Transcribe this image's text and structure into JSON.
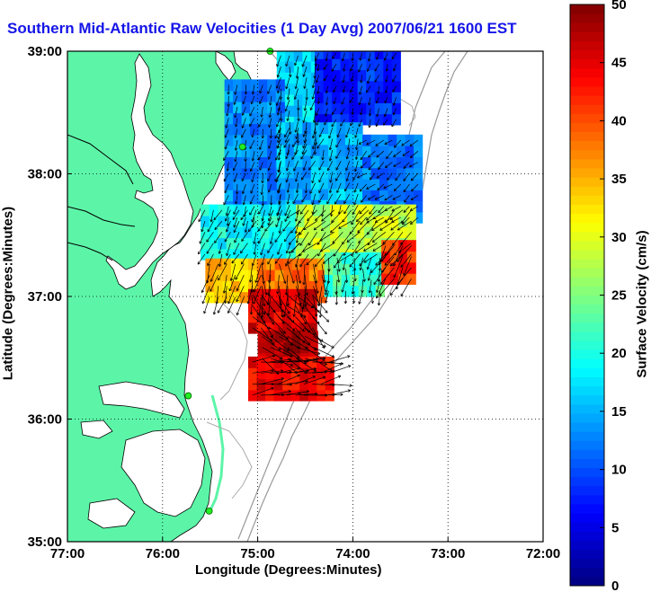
{
  "chart_data": {
    "type": "map-heatmap",
    "title": "Southern Mid-Atlantic Raw Velocities (1 Day Avg) 2007/06/21 1600 EST",
    "xlabel": "Longitude (Degrees:Minutes)",
    "ylabel": "Latitude (Degrees:Minutes)",
    "colorbar_label": "Surface Velocity (cm/s)",
    "x_range": [
      -77,
      -72
    ],
    "y_range": [
      35,
      39
    ],
    "x_ticks": [
      {
        "value": -77,
        "label": "77:00"
      },
      {
        "value": -76,
        "label": "76:00"
      },
      {
        "value": -75,
        "label": "75:00"
      },
      {
        "value": -74,
        "label": "74:00"
      },
      {
        "value": -73,
        "label": "73:00"
      },
      {
        "value": -72,
        "label": "72:00"
      }
    ],
    "y_ticks": [
      {
        "value": 35,
        "label": "35:00"
      },
      {
        "value": 36,
        "label": "36:00"
      },
      {
        "value": 37,
        "label": "37:00"
      },
      {
        "value": 38,
        "label": "38:00"
      },
      {
        "value": 39,
        "label": "39:00"
      }
    ],
    "colorbar_range": [
      0,
      50
    ],
    "colorbar_ticks": [
      0,
      5,
      10,
      15,
      20,
      25,
      30,
      35,
      40,
      45,
      50
    ],
    "grid": "dotted",
    "colormap": "jet",
    "stations": [
      {
        "lon": -74.87,
        "lat": 39.0
      },
      {
        "lon": -75.16,
        "lat": 38.22
      },
      {
        "lon": -75.73,
        "lat": 36.19
      },
      {
        "lon": -75.51,
        "lat": 35.25
      }
    ],
    "velocity_field": {
      "note": "gridded surface current speed (cm/s) with direction (deg, math convention)",
      "regions": [
        {
          "lon": [
            -74.8,
            -74.4
          ],
          "lat": [
            38.2,
            38.95
          ],
          "speed": 17,
          "dir": -100
        },
        {
          "lon": [
            -74.4,
            -73.55
          ],
          "lat": [
            38.4,
            38.95
          ],
          "speed": 8,
          "dir": -110
        },
        {
          "lon": [
            -75.35,
            -74.8
          ],
          "lat": [
            37.6,
            38.7
          ],
          "speed": 13,
          "dir": -105
        },
        {
          "lon": [
            -74.8,
            -73.9
          ],
          "lat": [
            37.7,
            38.4
          ],
          "speed": 15,
          "dir": -110
        },
        {
          "lon": [
            -73.9,
            -73.35
          ],
          "lat": [
            37.6,
            38.3
          ],
          "speed": 12,
          "dir": -140
        },
        {
          "lon": [
            -75.6,
            -74.6
          ],
          "lat": [
            37.3,
            37.7
          ],
          "speed": 19,
          "dir": -115
        },
        {
          "lon": [
            -74.6,
            -73.4
          ],
          "lat": [
            37.3,
            37.7
          ],
          "speed": 28,
          "dir": -135
        },
        {
          "lon": [
            -75.55,
            -75.0
          ],
          "lat": [
            36.95,
            37.3
          ],
          "speed": 34,
          "dir": -105
        },
        {
          "lon": [
            -75.0,
            -74.3
          ],
          "lat": [
            36.95,
            37.3
          ],
          "speed": 38,
          "dir": -85
        },
        {
          "lon": [
            -74.3,
            -73.7
          ],
          "lat": [
            37.0,
            37.3
          ],
          "speed": 22,
          "dir": -95
        },
        {
          "lon": [
            -73.7,
            -73.4
          ],
          "lat": [
            37.1,
            37.45
          ],
          "speed": 42,
          "dir": -120
        },
        {
          "lon": [
            -75.1,
            -74.4
          ],
          "lat": [
            36.7,
            36.98
          ],
          "speed": 45,
          "dir": -45
        },
        {
          "lon": [
            -75.0,
            -74.4
          ],
          "lat": [
            36.45,
            36.7
          ],
          "speed": 48,
          "dir": -30
        },
        {
          "lon": [
            -75.1,
            -74.2
          ],
          "lat": [
            36.15,
            36.45
          ],
          "speed": 44,
          "dir": 10
        }
      ]
    }
  }
}
